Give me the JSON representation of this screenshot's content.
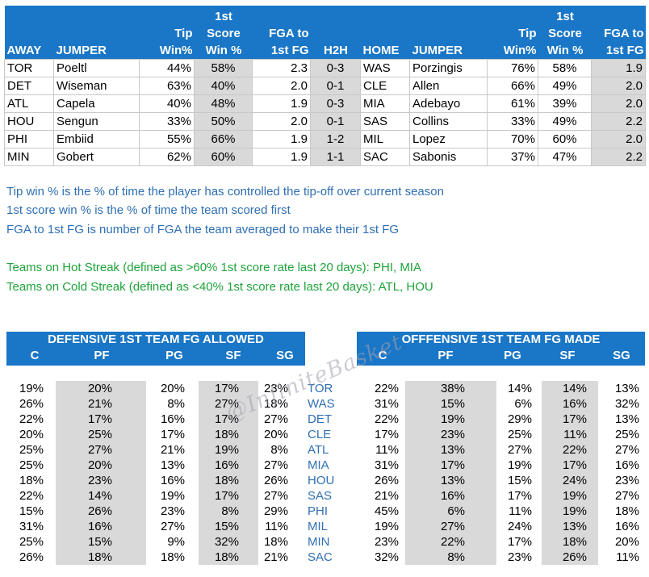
{
  "matchup_table": {
    "headers": {
      "away": "AWAY",
      "jumper": "JUMPER",
      "tip": [
        "Tip",
        "Win%"
      ],
      "score": [
        "1st",
        "Score",
        "Win %"
      ],
      "fga": [
        "FGA to",
        "1st FG"
      ],
      "h2h": "H2H",
      "home": "HOME",
      "jumper2": "JUMPER",
      "tip2": [
        "Tip",
        "Win%"
      ],
      "score2": [
        "1st",
        "Score",
        "Win %"
      ],
      "fga2": [
        "FGA to",
        "1st FG"
      ]
    },
    "rows": [
      {
        "away": "TOR",
        "away_jumper": "Poeltl",
        "away_tip": "44%",
        "away_score": "58%",
        "away_fga": "2.3",
        "h2h": "0-3",
        "home": "WAS",
        "home_jumper": "Porzingis",
        "home_tip": "76%",
        "home_score": "58%",
        "home_fga": "1.9"
      },
      {
        "away": "DET",
        "away_jumper": "Wiseman",
        "away_tip": "63%",
        "away_score": "40%",
        "away_fga": "2.0",
        "h2h": "0-1",
        "home": "CLE",
        "home_jumper": "Allen",
        "home_tip": "66%",
        "home_score": "49%",
        "home_fga": "2.0"
      },
      {
        "away": "ATL",
        "away_jumper": "Capela",
        "away_tip": "40%",
        "away_score": "48%",
        "away_fga": "1.9",
        "h2h": "0-3",
        "home": "MIA",
        "home_jumper": "Adebayo",
        "home_tip": "61%",
        "home_score": "39%",
        "home_fga": "2.0"
      },
      {
        "away": "HOU",
        "away_jumper": "Sengun",
        "away_tip": "33%",
        "away_score": "50%",
        "away_fga": "2.0",
        "h2h": "0-1",
        "home": "SAS",
        "home_jumper": "Collins",
        "home_tip": "33%",
        "home_score": "49%",
        "home_fga": "2.2"
      },
      {
        "away": "PHI",
        "away_jumper": "Embiid",
        "away_tip": "55%",
        "away_score": "66%",
        "away_fga": "1.9",
        "h2h": "1-2",
        "home": "MIL",
        "home_jumper": "Lopez",
        "home_tip": "70%",
        "home_score": "60%",
        "home_fga": "2.0"
      },
      {
        "away": "MIN",
        "away_jumper": "Gobert",
        "away_tip": "62%",
        "away_score": "60%",
        "away_fga": "1.9",
        "h2h": "1-1",
        "home": "SAC",
        "home_jumper": "Sabonis",
        "home_tip": "37%",
        "home_score": "47%",
        "home_fga": "2.2"
      }
    ]
  },
  "notes": {
    "tip_win": "Tip win % is the % of time the player has controlled the tip-off over current season",
    "score_win": "1st score win % is the % of time the team scored first",
    "fga": "FGA to 1st FG is number of FGA the team averaged to make their 1st FG",
    "hot": "Teams on Hot Streak (defined as >60% 1st score rate last 20 days): PHI, MIA",
    "cold": "Teams on Cold Streak (defined as <40% 1st score rate last 20 days):  ATL, HOU"
  },
  "defense": {
    "title": "DEFENSIVE 1ST TEAM FG ALLOWED",
    "columns": [
      "C",
      "PF",
      "PG",
      "SF",
      "SG"
    ],
    "rows": [
      [
        "19%",
        "20%",
        "20%",
        "17%",
        "23%"
      ],
      [
        "26%",
        "21%",
        "8%",
        "27%",
        "18%"
      ],
      [
        "22%",
        "17%",
        "16%",
        "17%",
        "27%"
      ],
      [
        "20%",
        "25%",
        "17%",
        "18%",
        "20%"
      ],
      [
        "25%",
        "27%",
        "21%",
        "19%",
        "8%"
      ],
      [
        "25%",
        "20%",
        "13%",
        "16%",
        "27%"
      ],
      [
        "18%",
        "23%",
        "16%",
        "18%",
        "26%"
      ],
      [
        "22%",
        "14%",
        "19%",
        "17%",
        "27%"
      ],
      [
        "15%",
        "26%",
        "23%",
        "8%",
        "29%"
      ],
      [
        "31%",
        "16%",
        "27%",
        "15%",
        "11%"
      ],
      [
        "25%",
        "15%",
        "9%",
        "32%",
        "18%"
      ],
      [
        "26%",
        "18%",
        "18%",
        "18%",
        "21%"
      ]
    ]
  },
  "teams": [
    "TOR",
    "WAS",
    "DET",
    "CLE",
    "ATL",
    "MIA",
    "HOU",
    "SAS",
    "PHI",
    "MIL",
    "MIN",
    "SAC"
  ],
  "offense": {
    "title": "OFFFENSIVE 1ST TEAM FG MADE",
    "columns": [
      "C",
      "PF",
      "PG",
      "SF",
      "SG"
    ],
    "rows": [
      [
        "22%",
        "38%",
        "14%",
        "14%",
        "13%"
      ],
      [
        "31%",
        "15%",
        "6%",
        "16%",
        "32%"
      ],
      [
        "22%",
        "19%",
        "29%",
        "17%",
        "13%"
      ],
      [
        "17%",
        "23%",
        "25%",
        "11%",
        "25%"
      ],
      [
        "11%",
        "13%",
        "27%",
        "22%",
        "27%"
      ],
      [
        "31%",
        "17%",
        "19%",
        "17%",
        "16%"
      ],
      [
        "26%",
        "13%",
        "15%",
        "24%",
        "23%"
      ],
      [
        "21%",
        "16%",
        "17%",
        "19%",
        "27%"
      ],
      [
        "45%",
        "6%",
        "11%",
        "19%",
        "18%"
      ],
      [
        "19%",
        "27%",
        "24%",
        "13%",
        "16%"
      ],
      [
        "23%",
        "22%",
        "17%",
        "18%",
        "20%"
      ],
      [
        "32%",
        "8%",
        "23%",
        "26%",
        "11%"
      ]
    ]
  },
  "watermark": "@InfiniteBasket",
  "colors": {
    "header_blue": "#1a76c6",
    "note_blue": "#2f6fb3",
    "note_green": "#1fa33b",
    "shade_gray": "#d9d9d9"
  }
}
